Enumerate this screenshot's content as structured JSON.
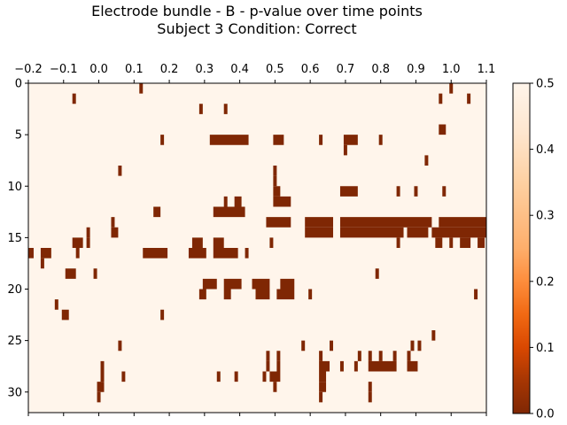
{
  "chart_data": {
    "type": "heatmap",
    "title": "Electrode bundle - B - p-value over time points",
    "subtitle": "Subject 3    Condition: Correct",
    "xlim": [
      -0.2,
      1.1
    ],
    "ylim": [
      32,
      0
    ],
    "x_ticks": [
      "−0.2",
      "−0.1",
      "0.0",
      "0.1",
      "0.2",
      "0.3",
      "0.4",
      "0.5",
      "0.6",
      "0.7",
      "0.8",
      "0.9",
      "1.0",
      "1.1"
    ],
    "x_tick_values": [
      -0.2,
      -0.1,
      0.0,
      0.1,
      0.2,
      0.3,
      0.4,
      0.5,
      0.6,
      0.7,
      0.8,
      0.9,
      1.0,
      1.1
    ],
    "y_ticks": [
      "0",
      "5",
      "10",
      "15",
      "20",
      "25",
      "30"
    ],
    "y_tick_values": [
      0,
      5,
      10,
      15,
      20,
      25,
      30
    ],
    "colorbar": {
      "min": 0.0,
      "max": 0.5,
      "ticks": [
        "0.0",
        "0.1",
        "0.2",
        "0.3",
        "0.4",
        "0.5"
      ],
      "tick_values": [
        0.0,
        0.1,
        0.2,
        0.3,
        0.4,
        0.5
      ],
      "colormap": "Oranges_r",
      "low_color": "#7f2704",
      "high_color": "#fff5eb"
    },
    "background_value": 0.5,
    "significant_value": 0.0,
    "significant_cells": [
      {
        "row": 0,
        "x0": 0.115,
        "x1": 0.125
      },
      {
        "row": 0,
        "x0": 0.995,
        "x1": 1.005
      },
      {
        "row": 1,
        "x0": -0.075,
        "x1": -0.065
      },
      {
        "row": 1,
        "x0": 0.965,
        "x1": 0.975
      },
      {
        "row": 1,
        "x0": 1.045,
        "x1": 1.055
      },
      {
        "row": 2,
        "x0": 0.285,
        "x1": 0.295
      },
      {
        "row": 2,
        "x0": 0.355,
        "x1": 0.365
      },
      {
        "row": 4,
        "x0": 0.965,
        "x1": 0.985
      },
      {
        "row": 5,
        "x0": 0.175,
        "x1": 0.185
      },
      {
        "row": 5,
        "x0": 0.315,
        "x1": 0.425
      },
      {
        "row": 5,
        "x0": 0.495,
        "x1": 0.525
      },
      {
        "row": 5,
        "x0": 0.625,
        "x1": 0.635
      },
      {
        "row": 5,
        "x0": 0.695,
        "x1": 0.735
      },
      {
        "row": 5,
        "x0": 0.795,
        "x1": 0.805
      },
      {
        "row": 6,
        "x0": 0.695,
        "x1": 0.705
      },
      {
        "row": 7,
        "x0": 0.925,
        "x1": 0.935
      },
      {
        "row": 8,
        "x0": 0.055,
        "x1": 0.065
      },
      {
        "row": 8,
        "x0": 0.495,
        "x1": 0.505
      },
      {
        "row": 9,
        "x0": 0.495,
        "x1": 0.505
      },
      {
        "row": 10,
        "x0": 0.495,
        "x1": 0.515
      },
      {
        "row": 10,
        "x0": 0.685,
        "x1": 0.735
      },
      {
        "row": 10,
        "x0": 0.845,
        "x1": 0.855
      },
      {
        "row": 10,
        "x0": 0.895,
        "x1": 0.905
      },
      {
        "row": 10,
        "x0": 0.975,
        "x1": 0.985
      },
      {
        "row": 11,
        "x0": 0.355,
        "x1": 0.365
      },
      {
        "row": 11,
        "x0": 0.385,
        "x1": 0.405
      },
      {
        "row": 11,
        "x0": 0.495,
        "x1": 0.545
      },
      {
        "row": 12,
        "x0": 0.155,
        "x1": 0.175
      },
      {
        "row": 12,
        "x0": 0.325,
        "x1": 0.415
      },
      {
        "row": 13,
        "x0": 0.035,
        "x1": 0.045
      },
      {
        "row": 13,
        "x0": 0.475,
        "x1": 0.545
      },
      {
        "row": 13,
        "x0": 0.585,
        "x1": 0.665
      },
      {
        "row": 13,
        "x0": 0.685,
        "x1": 0.945
      },
      {
        "row": 13,
        "x0": 0.965,
        "x1": 1.1
      },
      {
        "row": 14,
        "x0": -0.035,
        "x1": -0.025
      },
      {
        "row": 14,
        "x0": 0.035,
        "x1": 0.055
      },
      {
        "row": 14,
        "x0": 0.585,
        "x1": 0.665
      },
      {
        "row": 14,
        "x0": 0.685,
        "x1": 0.865
      },
      {
        "row": 14,
        "x0": 0.875,
        "x1": 0.935
      },
      {
        "row": 14,
        "x0": 0.945,
        "x1": 1.1
      },
      {
        "row": 15,
        "x0": -0.075,
        "x1": -0.045
      },
      {
        "row": 15,
        "x0": -0.035,
        "x1": -0.025
      },
      {
        "row": 15,
        "x0": 0.265,
        "x1": 0.295
      },
      {
        "row": 15,
        "x0": 0.325,
        "x1": 0.355
      },
      {
        "row": 15,
        "x0": 0.485,
        "x1": 0.495
      },
      {
        "row": 15,
        "x0": 0.845,
        "x1": 0.855
      },
      {
        "row": 15,
        "x0": 0.955,
        "x1": 0.975
      },
      {
        "row": 15,
        "x0": 0.995,
        "x1": 1.005
      },
      {
        "row": 15,
        "x0": 1.025,
        "x1": 1.055
      },
      {
        "row": 15,
        "x0": 1.075,
        "x1": 1.095
      },
      {
        "row": 16,
        "x0": -0.2,
        "x1": -0.185
      },
      {
        "row": 16,
        "x0": -0.165,
        "x1": -0.135
      },
      {
        "row": 16,
        "x0": -0.065,
        "x1": -0.055
      },
      {
        "row": 16,
        "x0": 0.125,
        "x1": 0.195
      },
      {
        "row": 16,
        "x0": 0.255,
        "x1": 0.305
      },
      {
        "row": 16,
        "x0": 0.325,
        "x1": 0.395
      },
      {
        "row": 16,
        "x0": 0.415,
        "x1": 0.425
      },
      {
        "row": 17,
        "x0": -0.165,
        "x1": -0.155
      },
      {
        "row": 18,
        "x0": -0.095,
        "x1": -0.065
      },
      {
        "row": 18,
        "x0": -0.015,
        "x1": -0.005
      },
      {
        "row": 18,
        "x0": 0.785,
        "x1": 0.795
      },
      {
        "row": 19,
        "x0": 0.295,
        "x1": 0.335
      },
      {
        "row": 19,
        "x0": 0.355,
        "x1": 0.405
      },
      {
        "row": 19,
        "x0": 0.435,
        "x1": 0.485
      },
      {
        "row": 19,
        "x0": 0.515,
        "x1": 0.555
      },
      {
        "row": 20,
        "x0": 0.285,
        "x1": 0.305
      },
      {
        "row": 20,
        "x0": 0.355,
        "x1": 0.375
      },
      {
        "row": 20,
        "x0": 0.445,
        "x1": 0.485
      },
      {
        "row": 20,
        "x0": 0.505,
        "x1": 0.555
      },
      {
        "row": 20,
        "x0": 0.595,
        "x1": 0.605
      },
      {
        "row": 20,
        "x0": 1.065,
        "x1": 1.075
      },
      {
        "row": 21,
        "x0": -0.125,
        "x1": -0.115
      },
      {
        "row": 22,
        "x0": -0.105,
        "x1": -0.085
      },
      {
        "row": 22,
        "x0": 0.175,
        "x1": 0.185
      },
      {
        "row": 24,
        "x0": 0.945,
        "x1": 0.955
      },
      {
        "row": 25,
        "x0": 0.055,
        "x1": 0.065
      },
      {
        "row": 25,
        "x0": 0.575,
        "x1": 0.585
      },
      {
        "row": 25,
        "x0": 0.655,
        "x1": 0.665
      },
      {
        "row": 25,
        "x0": 0.885,
        "x1": 0.895
      },
      {
        "row": 25,
        "x0": 0.905,
        "x1": 0.915
      },
      {
        "row": 26,
        "x0": 0.475,
        "x1": 0.485
      },
      {
        "row": 26,
        "x0": 0.505,
        "x1": 0.515
      },
      {
        "row": 26,
        "x0": 0.625,
        "x1": 0.635
      },
      {
        "row": 26,
        "x0": 0.735,
        "x1": 0.745
      },
      {
        "row": 26,
        "x0": 0.765,
        "x1": 0.775
      },
      {
        "row": 26,
        "x0": 0.795,
        "x1": 0.805
      },
      {
        "row": 26,
        "x0": 0.835,
        "x1": 0.845
      },
      {
        "row": 26,
        "x0": 0.875,
        "x1": 0.885
      },
      {
        "row": 27,
        "x0": 0.005,
        "x1": 0.015
      },
      {
        "row": 27,
        "x0": 0.475,
        "x1": 0.485
      },
      {
        "row": 27,
        "x0": 0.505,
        "x1": 0.515
      },
      {
        "row": 27,
        "x0": 0.625,
        "x1": 0.655
      },
      {
        "row": 27,
        "x0": 0.685,
        "x1": 0.695
      },
      {
        "row": 27,
        "x0": 0.725,
        "x1": 0.735
      },
      {
        "row": 27,
        "x0": 0.765,
        "x1": 0.845
      },
      {
        "row": 27,
        "x0": 0.875,
        "x1": 0.905
      },
      {
        "row": 28,
        "x0": 0.005,
        "x1": 0.015
      },
      {
        "row": 28,
        "x0": 0.065,
        "x1": 0.075
      },
      {
        "row": 28,
        "x0": 0.335,
        "x1": 0.345
      },
      {
        "row": 28,
        "x0": 0.385,
        "x1": 0.395
      },
      {
        "row": 28,
        "x0": 0.465,
        "x1": 0.475
      },
      {
        "row": 28,
        "x0": 0.485,
        "x1": 0.515
      },
      {
        "row": 28,
        "x0": 0.625,
        "x1": 0.645
      },
      {
        "row": 29,
        "x0": -0.005,
        "x1": 0.015
      },
      {
        "row": 29,
        "x0": 0.495,
        "x1": 0.505
      },
      {
        "row": 29,
        "x0": 0.625,
        "x1": 0.645
      },
      {
        "row": 29,
        "x0": 0.765,
        "x1": 0.775
      },
      {
        "row": 30,
        "x0": -0.005,
        "x1": 0.005
      },
      {
        "row": 30,
        "x0": 0.625,
        "x1": 0.635
      },
      {
        "row": 30,
        "x0": 0.765,
        "x1": 0.775
      }
    ]
  }
}
